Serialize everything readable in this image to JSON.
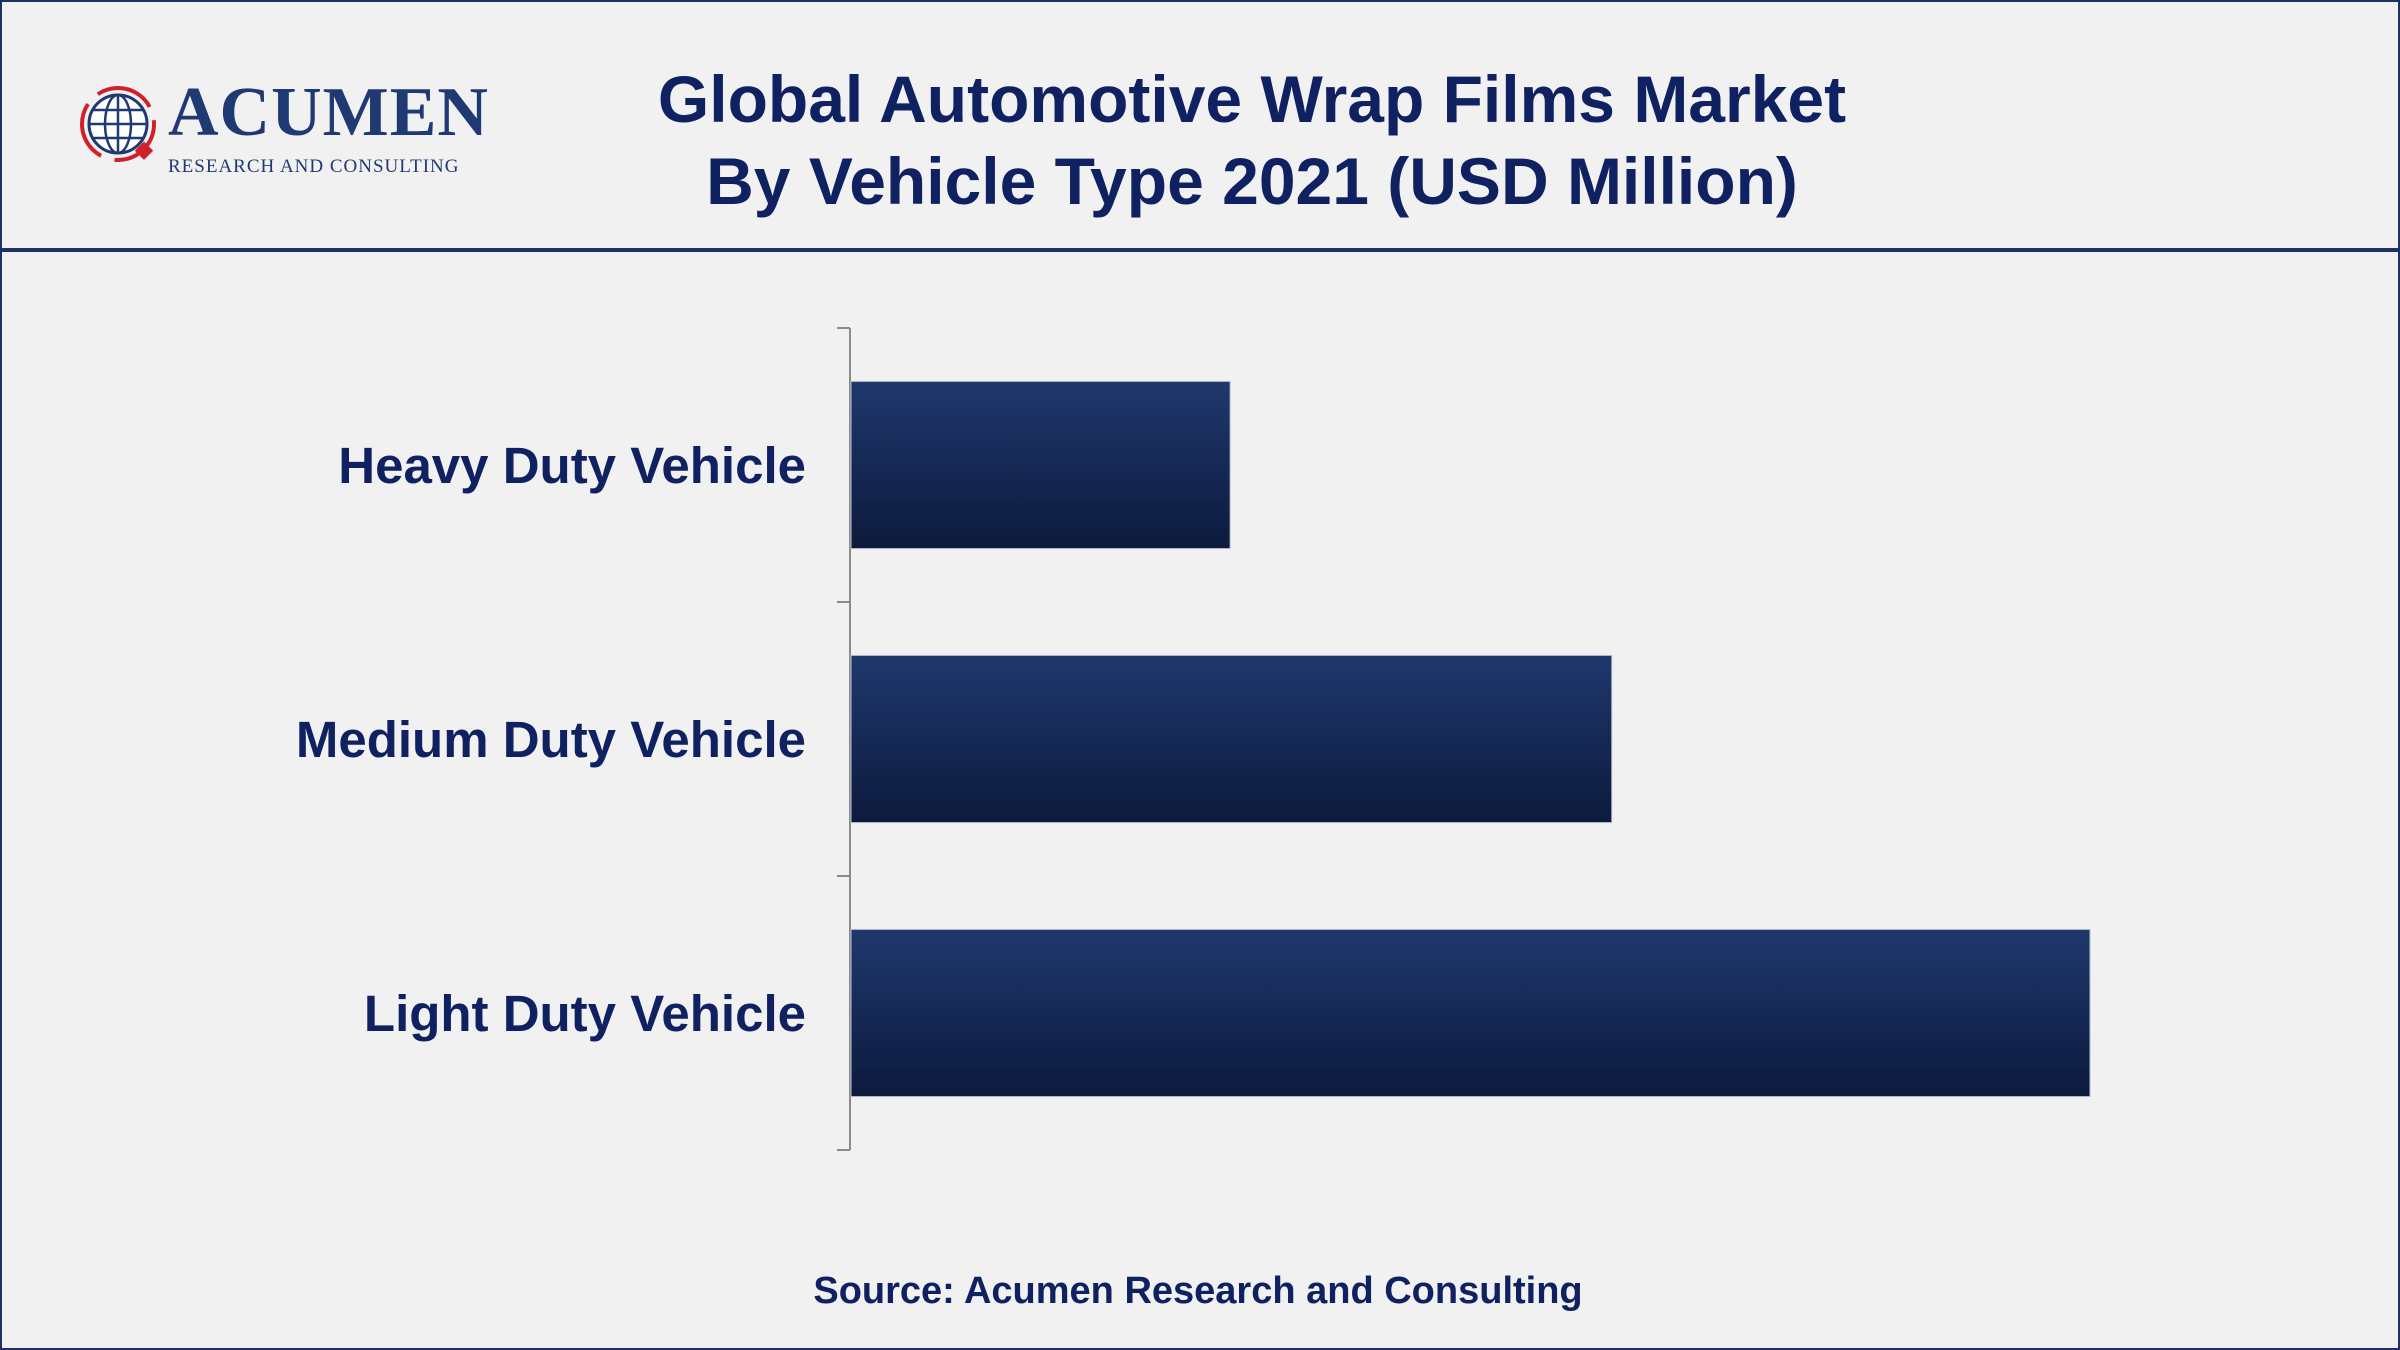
{
  "brand": {
    "name": "ACUMEN",
    "tagline": "RESEARCH AND CONSULTING",
    "colors": {
      "primary": "#1f3163",
      "accent": "#d0202a"
    },
    "icon": "globe-logo-icon"
  },
  "title": {
    "line1": "Global Automotive Wrap Films Market",
    "line2": "By Vehicle Type 2021 (USD Million)"
  },
  "source": "Source: Acumen Research and Consulting",
  "chart_data": {
    "type": "bar",
    "orientation": "horizontal",
    "title": "Global Automotive Wrap Films Market By Vehicle Type 2021 (USD Million)",
    "categories": [
      "Heavy Duty Vehicle",
      "Medium Duty Vehicle",
      "Light Duty Vehicle"
    ],
    "values": [
      30.6,
      61.4,
      100
    ],
    "value_unit": "relative bar length (no axis or data labels printed)",
    "xlim": [
      0,
      100
    ],
    "grid": false,
    "legend": "none",
    "bar_color": "#1c3366"
  }
}
